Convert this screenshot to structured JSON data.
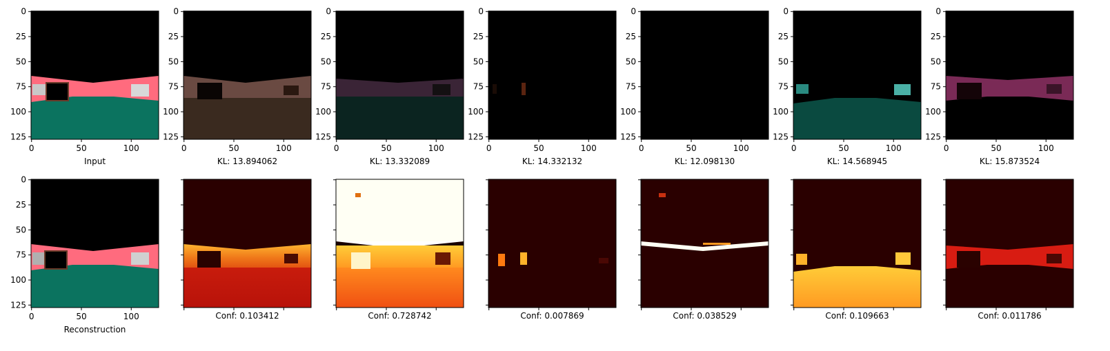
{
  "figure": {
    "top_row": {
      "panels": [
        {
          "caption": "Input",
          "kind": "segmentation",
          "tint": "full"
        },
        {
          "caption": "KL: 13.894062",
          "kind": "sample",
          "tint": "brown"
        },
        {
          "caption": "KL: 13.332089",
          "kind": "sample",
          "tint": "purple-teal"
        },
        {
          "caption": "KL: 14.332132",
          "kind": "sample",
          "tint": "dark"
        },
        {
          "caption": "KL: 12.098130",
          "kind": "sample",
          "tint": "black"
        },
        {
          "caption": "KL: 14.568945",
          "kind": "sample",
          "tint": "teal"
        },
        {
          "caption": "KL: 15.873524",
          "kind": "sample",
          "tint": "magenta"
        }
      ]
    },
    "bottom_row": {
      "panels": [
        {
          "caption": "Reconstruction",
          "kind": "segmentation"
        },
        {
          "caption": "Conf: 0.103412",
          "kind": "heatmap"
        },
        {
          "caption": "Conf: 0.728742",
          "kind": "heatmap"
        },
        {
          "caption": "Conf: 0.007869",
          "kind": "heatmap"
        },
        {
          "caption": "Conf: 0.038529",
          "kind": "heatmap"
        },
        {
          "caption": "Conf: 0.109663",
          "kind": "heatmap"
        },
        {
          "caption": "Conf: 0.011786",
          "kind": "heatmap"
        }
      ]
    },
    "axis": {
      "x_ticks": [
        "0",
        "50",
        "100"
      ],
      "x_tick_values": [
        0,
        50,
        100
      ],
      "y_ticks": [
        "0",
        "25",
        "50",
        "75",
        "100",
        "125"
      ],
      "y_tick_values": [
        0,
        25,
        50,
        75,
        100,
        125
      ],
      "range": [
        0,
        128
      ]
    },
    "colors": {
      "road": "#ff6b7e",
      "ground": "#0b735f",
      "sky": "#000000",
      "car": "#c8c8c8",
      "heat_low": "#2a0000",
      "heat_mid": "#c81b0a",
      "heat_high": "#ffd23a",
      "heat_max": "#fffff4"
    }
  }
}
